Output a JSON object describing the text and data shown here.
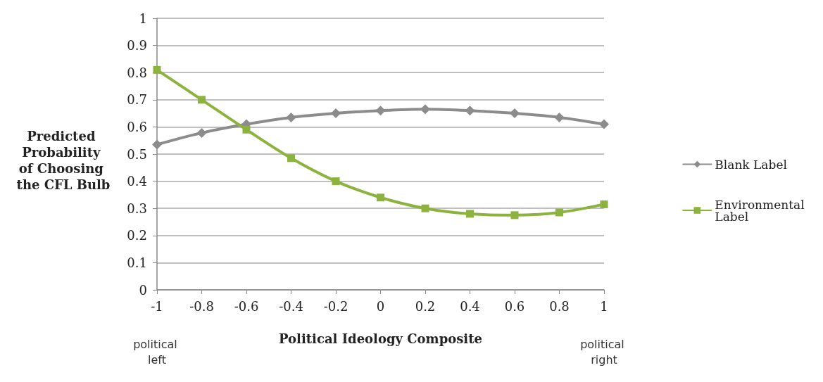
{
  "chart_data": {
    "type": "line",
    "xlabel": "Political Ideology Composite",
    "ylabel": "Predicted Probability of Choosing the CFL Bulb",
    "x": [
      -1,
      -0.8,
      -0.6,
      -0.4,
      -0.2,
      0,
      0.2,
      0.4,
      0.6,
      0.8,
      1
    ],
    "series": [
      {
        "name": "Blank Label",
        "color": "#8c8c8c",
        "marker": "diamond",
        "values": [
          0.535,
          0.578,
          0.61,
          0.635,
          0.65,
          0.66,
          0.665,
          0.66,
          0.65,
          0.635,
          0.61
        ]
      },
      {
        "name": "Environmental Label",
        "color": "#8db33f",
        "marker": "square",
        "values": [
          0.81,
          0.7,
          0.59,
          0.485,
          0.4,
          0.34,
          0.3,
          0.28,
          0.275,
          0.285,
          0.315
        ]
      }
    ],
    "xlim": [
      -1,
      1
    ],
    "xticks": [
      -1,
      -0.8,
      -0.6,
      -0.4,
      -0.2,
      0,
      0.2,
      0.4,
      0.6,
      0.8,
      1
    ],
    "ylim": [
      0,
      1
    ],
    "yticks": [
      0,
      0.1,
      0.2,
      0.3,
      0.4,
      0.5,
      0.6,
      0.7,
      0.8,
      0.9,
      1
    ],
    "grid": "y",
    "legend": "right",
    "line_style": "solid",
    "annotations": [
      "political left",
      "political right"
    ]
  }
}
